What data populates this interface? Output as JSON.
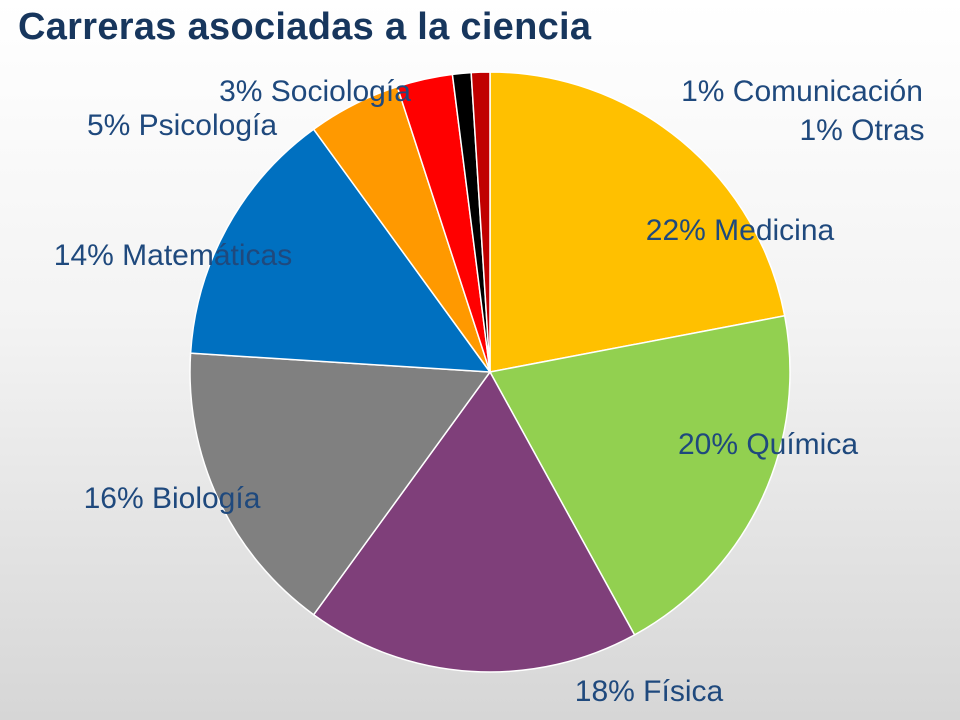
{
  "chart_data": {
    "type": "pie",
    "title": "Carreras asociadas a la ciencia",
    "unit": "%",
    "slices": [
      {
        "label": "Medicina",
        "value": 22,
        "text": "22% Medicina",
        "color": "#ffc000"
      },
      {
        "label": "Química",
        "value": 20,
        "text": "20% Química",
        "color": "#92d050"
      },
      {
        "label": "Física",
        "value": 18,
        "text": "18% Física",
        "color": "#7f3f7a"
      },
      {
        "label": "Biología",
        "value": 16,
        "text": "16% Biología",
        "color": "#808080"
      },
      {
        "label": "Matemáticas",
        "value": 14,
        "text": "14% Matemáticas",
        "color": "#0070c0"
      },
      {
        "label": "Psicología",
        "value": 5,
        "text": "5% Psicología",
        "color": "#ff9900"
      },
      {
        "label": "Sociología",
        "value": 3,
        "text": "3% Sociología",
        "color": "#ff0000"
      },
      {
        "label": "Otras",
        "value": 1,
        "text": "1% Otras",
        "color": "#000000"
      },
      {
        "label": "Comunicación",
        "value": 1,
        "text": "1% Comunicación",
        "color": "#c00000"
      }
    ]
  }
}
